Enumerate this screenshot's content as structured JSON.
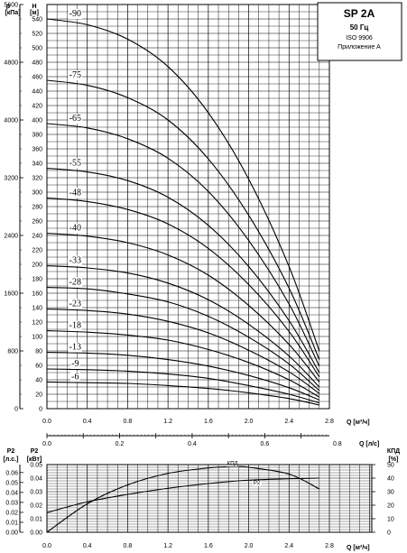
{
  "info_box": {
    "model": "SP 2A",
    "frequency": "50 Гц",
    "standard": "ISO 9906",
    "annex": "Приложение А"
  },
  "axis_labels": {
    "p_symbol": "p",
    "p_unit": "[кПа]",
    "h_symbol": "H",
    "h_unit": "[м]",
    "q_m3h": "Q [м³/ч]",
    "q_ls": "Q [л/с]",
    "p2_hp_symbol": "P2",
    "p2_hp_unit": "[л.с.]",
    "p2_kw_symbol": "P2",
    "p2_kw_unit": "[кВт]",
    "eff_symbol": "КПД",
    "eff_unit": "[%]",
    "q_m3h_bottom": "Q [м³/ч]"
  },
  "chart_data": [
    {
      "type": "line",
      "title": "SP 2A",
      "xlabel": "Q [м³/ч]",
      "ylabel": "H [м]",
      "xlim": [
        0,
        2.8
      ],
      "ylim": [
        0,
        560
      ],
      "x_ticks": [
        "0.0",
        "0.4",
        "0.8",
        "1.2",
        "1.6",
        "2.0",
        "2.4",
        "2.8"
      ],
      "y_ticks": [
        "0",
        "20",
        "40",
        "60",
        "80",
        "100",
        "120",
        "140",
        "160",
        "180",
        "200",
        "220",
        "240",
        "260",
        "280",
        "300",
        "320",
        "340",
        "360",
        "380",
        "400",
        "420",
        "440",
        "460",
        "480",
        "500",
        "520",
        "540"
      ],
      "secondary_y_label": "p [кПа]",
      "secondary_y_ticks": [
        "0",
        "800",
        "1600",
        "2400",
        "3200",
        "4000",
        "4800",
        "5600"
      ],
      "secondary_y_range": [
        0,
        5600
      ],
      "secondary_x_label": "Q [л/с]",
      "secondary_x_ticks": [
        "0.0",
        "0.2",
        "0.4",
        "0.6",
        "0.8"
      ],
      "secondary_x_range": [
        0,
        0.778
      ],
      "grid": true,
      "series": [
        {
          "name": "-90",
          "points": [
            [
              0,
              540
            ],
            [
              0.4,
              532
            ],
            [
              0.8,
              512
            ],
            [
              1.2,
              474
            ],
            [
              1.6,
              410
            ],
            [
              2.0,
              318
            ],
            [
              2.4,
              197
            ],
            [
              2.7,
              80
            ]
          ]
        },
        {
          "name": "-75",
          "points": [
            [
              0,
              455
            ],
            [
              0.4,
              448
            ],
            [
              0.8,
              431
            ],
            [
              1.2,
              400
            ],
            [
              1.6,
              346
            ],
            [
              2.0,
              268
            ],
            [
              2.4,
              167
            ],
            [
              2.7,
              68
            ]
          ]
        },
        {
          "name": "-65",
          "points": [
            [
              0,
              395
            ],
            [
              0.4,
              389
            ],
            [
              0.8,
              374
            ],
            [
              1.2,
              347
            ],
            [
              1.6,
              301
            ],
            [
              2.0,
              233
            ],
            [
              2.4,
              145
            ],
            [
              2.7,
              59
            ]
          ]
        },
        {
          "name": "-55",
          "points": [
            [
              0,
              333
            ],
            [
              0.4,
              328
            ],
            [
              0.8,
              316
            ],
            [
              1.2,
              293
            ],
            [
              1.6,
              254
            ],
            [
              2.0,
              197
            ],
            [
              2.4,
              122
            ],
            [
              2.7,
              50
            ]
          ]
        },
        {
          "name": "-48",
          "points": [
            [
              0,
              292
            ],
            [
              0.4,
              287
            ],
            [
              0.8,
              276
            ],
            [
              1.2,
              256
            ],
            [
              1.6,
              222
            ],
            [
              2.0,
              172
            ],
            [
              2.4,
              107
            ],
            [
              2.7,
              44
            ]
          ]
        },
        {
          "name": "-40",
          "points": [
            [
              0,
              243
            ],
            [
              0.4,
              239
            ],
            [
              0.8,
              230
            ],
            [
              1.2,
              213
            ],
            [
              1.6,
              185
            ],
            [
              2.0,
              143
            ],
            [
              2.4,
              89
            ],
            [
              2.7,
              37
            ]
          ]
        },
        {
          "name": "-33",
          "points": [
            [
              0,
              198
            ],
            [
              0.4,
              195
            ],
            [
              0.8,
              188
            ],
            [
              1.2,
              174
            ],
            [
              1.6,
              151
            ],
            [
              2.0,
              117
            ],
            [
              2.4,
              73
            ],
            [
              2.7,
              30
            ]
          ]
        },
        {
          "name": "-28",
          "points": [
            [
              0,
              168
            ],
            [
              0.4,
              166
            ],
            [
              0.8,
              159
            ],
            [
              1.2,
              148
            ],
            [
              1.6,
              128
            ],
            [
              2.0,
              99
            ],
            [
              2.4,
              62
            ],
            [
              2.7,
              25
            ]
          ]
        },
        {
          "name": "-23",
          "points": [
            [
              0,
              138
            ],
            [
              0.4,
              136
            ],
            [
              0.8,
              131
            ],
            [
              1.2,
              121
            ],
            [
              1.6,
              105
            ],
            [
              2.0,
              81
            ],
            [
              2.4,
              51
            ],
            [
              2.7,
              21
            ]
          ]
        },
        {
          "name": "-18",
          "points": [
            [
              0,
              108
            ],
            [
              0.4,
              106
            ],
            [
              0.8,
              102
            ],
            [
              1.2,
              95
            ],
            [
              1.6,
              82
            ],
            [
              2.0,
              64
            ],
            [
              2.4,
              40
            ],
            [
              2.7,
              16
            ]
          ]
        },
        {
          "name": "-13",
          "points": [
            [
              0,
              78
            ],
            [
              0.4,
              77
            ],
            [
              0.8,
              74
            ],
            [
              1.2,
              68
            ],
            [
              1.6,
              59
            ],
            [
              2.0,
              46
            ],
            [
              2.4,
              29
            ],
            [
              2.7,
              12
            ]
          ]
        },
        {
          "name": "-9",
          "points": [
            [
              0,
              55
            ],
            [
              0.4,
              54
            ],
            [
              0.8,
              52
            ],
            [
              1.2,
              48
            ],
            [
              1.6,
              42
            ],
            [
              2.0,
              32
            ],
            [
              2.4,
              20
            ],
            [
              2.7,
              8
            ]
          ]
        },
        {
          "name": "-6",
          "points": [
            [
              0,
              37
            ],
            [
              0.4,
              36
            ],
            [
              0.8,
              35
            ],
            [
              1.2,
              32
            ],
            [
              1.6,
              28
            ],
            [
              2.0,
              22
            ],
            [
              2.4,
              14
            ],
            [
              2.7,
              5
            ]
          ]
        }
      ]
    },
    {
      "type": "line",
      "xlabel": "Q [м³/ч]",
      "ylabel": "P2 [кВт]",
      "xlim": [
        0,
        2.8
      ],
      "ylim": [
        0,
        0.05
      ],
      "x_ticks": [
        "0.0",
        "0.4",
        "0.8",
        "1.2",
        "1.6",
        "2.0",
        "2.4",
        "2.8"
      ],
      "y_ticks": [
        "0.00",
        "0.01",
        "0.02",
        "0.03",
        "0.04",
        "0.05"
      ],
      "hp_axis_label": "P2 [л.с.]",
      "hp_ticks": [
        "0.00",
        "0.01",
        "0.02",
        "0.03",
        "0.04",
        "0.05",
        "0.06"
      ],
      "hp_range": [
        0,
        0.068
      ],
      "eff_axis_label": "КПД [%]",
      "eff_ticks": [
        "0",
        "10",
        "20",
        "30",
        "40",
        "50"
      ],
      "eff_range": [
        0,
        50
      ],
      "grid": true,
      "series": [
        {
          "name": "P2",
          "axis": "P2 [кВт]",
          "points": [
            [
              0,
              0.0145
            ],
            [
              0.4,
              0.0225
            ],
            [
              0.8,
              0.028
            ],
            [
              1.2,
              0.0325
            ],
            [
              1.6,
              0.036
            ],
            [
              2.0,
              0.0385
            ],
            [
              2.4,
              0.0395
            ],
            [
              2.7,
              0.04
            ]
          ]
        },
        {
          "name": "КПД",
          "axis": "КПД [%]",
          "points": [
            [
              0,
              0
            ],
            [
              0.4,
              21
            ],
            [
              0.8,
              35
            ],
            [
              1.2,
              43.5
            ],
            [
              1.6,
              47.5
            ],
            [
              1.85,
              48.5
            ],
            [
              2.0,
              48
            ],
            [
              2.4,
              43
            ],
            [
              2.7,
              32
            ]
          ]
        }
      ]
    }
  ]
}
